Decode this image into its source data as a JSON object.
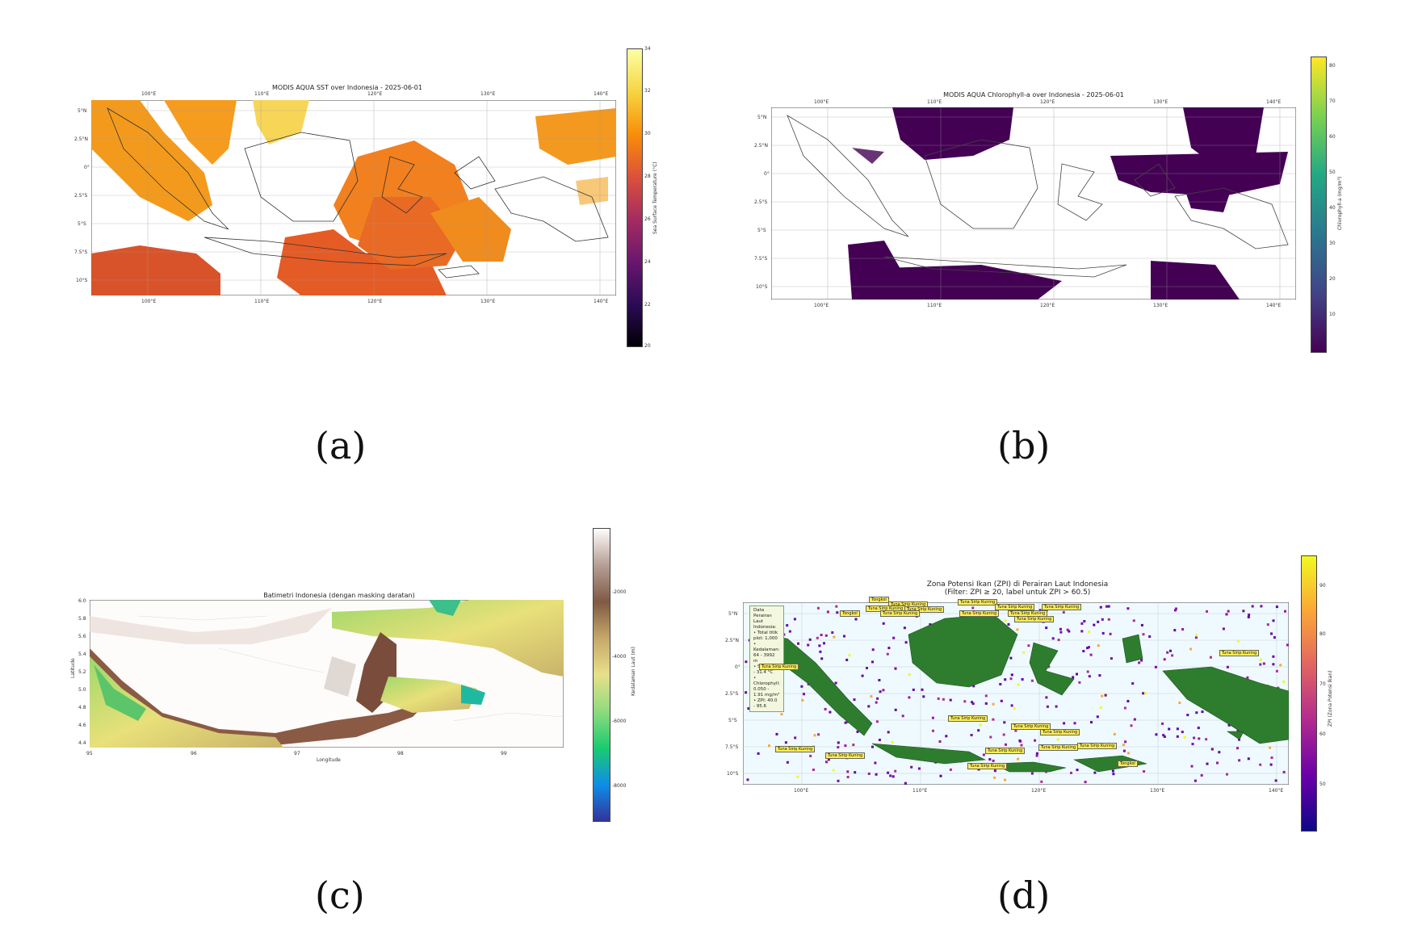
{
  "panels": {
    "a": {
      "label": "(a)",
      "title": "MODIS AQUA SST over Indonesia - 2025-06-01",
      "lon_ticks": [
        "100°E",
        "110°E",
        "120°E",
        "130°E",
        "140°E"
      ],
      "lat_ticks": [
        "5°N",
        "2.5°N",
        "0°",
        "2.5°S",
        "5°S",
        "7.5°S",
        "10°S"
      ],
      "colorbar_label": "Sea Surface Temperature (°C)",
      "colorbar_ticks": [
        "34",
        "32",
        "30",
        "28",
        "26",
        "24",
        "22",
        "20"
      ],
      "colormap": "inferno",
      "range": [
        20,
        34
      ]
    },
    "b": {
      "label": "(b)",
      "title": "MODIS AQUA Chlorophyll-a over Indonesia - 2025-06-01",
      "lon_ticks": [
        "100°E",
        "110°E",
        "120°E",
        "130°E",
        "140°E"
      ],
      "lat_ticks": [
        "5°N",
        "2.5°N",
        "0°",
        "2.5°S",
        "5°S",
        "7.5°S",
        "10°S"
      ],
      "colorbar_label": "Chlorophyll-a (mg/m³)",
      "colorbar_ticks": [
        "80",
        "70",
        "60",
        "50",
        "40",
        "30",
        "20",
        "10"
      ],
      "colormap": "viridis",
      "range": [
        0,
        83
      ]
    },
    "c": {
      "label": "(c)",
      "title": "Batimetri Indonesia (dengan masking daratan)",
      "xlabel": "Longitude",
      "ylabel": "Latitude",
      "x_ticks": [
        "95",
        "96",
        "97",
        "98",
        "99"
      ],
      "y_ticks": [
        "6.0",
        "5.8",
        "5.6",
        "5.4",
        "5.2",
        "5.0",
        "4.8",
        "4.6",
        "4.4"
      ],
      "colorbar_label": "Kedalaman Laut (m)",
      "colorbar_ticks": [
        "-2000",
        "-4000",
        "-6000",
        "-8000"
      ],
      "colormap": "terrain"
    },
    "d": {
      "label": "(d)",
      "title_line1": "Zona Potensi Ikan (ZPI) di Perairan Laut Indonesia",
      "title_line2": "(Filter: ZPI ≥ 20, label untuk ZPI > 60.5)",
      "lon_ticks": [
        "100°E",
        "110°E",
        "120°E",
        "130°E",
        "140°E"
      ],
      "lat_ticks": [
        "5°N",
        "2.5°N",
        "0°",
        "2.5°S",
        "5°S",
        "7.5°S",
        "10°S"
      ],
      "colorbar_label": "ZPI (Zona Potensi Ikan)",
      "colorbar_ticks": [
        "90",
        "80",
        "70",
        "60",
        "50"
      ],
      "colormap": "plasma",
      "info_box": {
        "title": "Data Perairan Laut Indonesia:",
        "lines": [
          "• Total titik plot: 1,000",
          "• Kedalaman: 64 - 3992 m",
          "• SST: 27.7 - 31.4 °C",
          "• Chlorophyll: 0.050 - 1.91 mg/m³",
          "• ZPI: 40.0 - 95.6"
        ]
      },
      "fish_labels": [
        "Tuna Sirip Kuning",
        "Tongkol",
        "Tuna Sirip Kuning",
        "Tuna Sirip Kuning",
        "Tuna Sirip Kuning",
        "Tuna Sirip Kuning",
        "Tuna Sirip Kuning",
        "Tuna Sirip Kuning",
        "Tuna Sirip Kuning",
        "Tuna Sirip Kuning",
        "Tongkol",
        "Tuna Sirip Kuning",
        "Tuna Sirip Kuning",
        "Tuna Sirip Kuning",
        "Tuna Sirip Kuning",
        "Tuna Sirip Kuning",
        "Tuna Sirip Kuning",
        "Tuna Sirip Kuning",
        "Tuna Sirip Kuning",
        "Tuna Sirip Kuning",
        "Tuna Sirip Kuning",
        "Tuna Sirip Kuning",
        "Tuna Sirip Kuning",
        "Tongkol"
      ]
    }
  }
}
